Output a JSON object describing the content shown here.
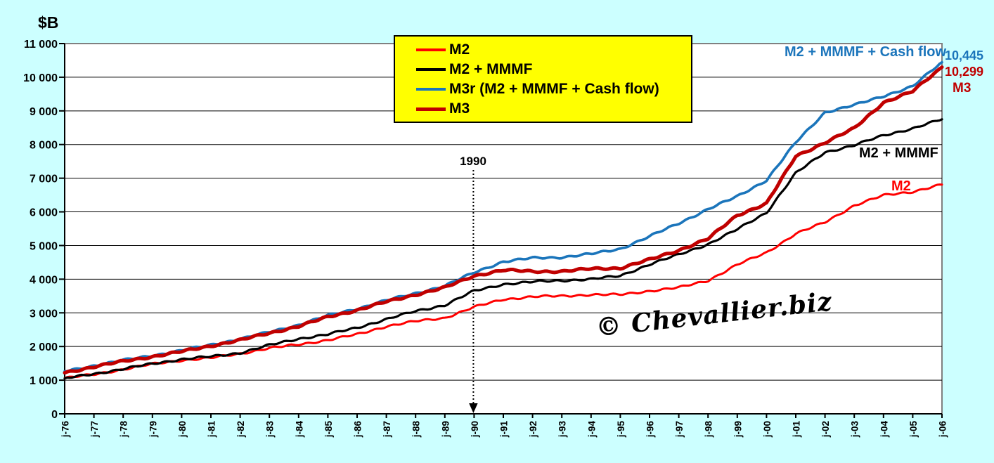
{
  "colors": {
    "background": "#CCFFFF",
    "plot_background": "#FFFFFF",
    "legend_background": "#FFFF00",
    "m2": "#FF0000",
    "m2_mmmf": "#000000",
    "m3r": "#1B75BB",
    "m3": "#C00000"
  },
  "chart_data": {
    "type": "line",
    "title": "",
    "ylabel": "$B",
    "xlabel": "",
    "ylim": [
      0,
      11000
    ],
    "ytick_step": 1000,
    "y_tick_labels": [
      "0",
      "1 000",
      "2 000",
      "3 000",
      "4 000",
      "5 000",
      "6 000",
      "7 000",
      "8 000",
      "9 000",
      "10 000",
      "11 000"
    ],
    "grid": true,
    "legend_position": "top-center",
    "x_labels": [
      "j-76",
      "j-77",
      "j-78",
      "j-79",
      "j-80",
      "j-81",
      "j-82",
      "j-83",
      "j-84",
      "j-85",
      "j-86",
      "j-87",
      "j-88",
      "j-89",
      "j-90",
      "j-91",
      "j-92",
      "j-93",
      "j-94",
      "j-95",
      "j-96",
      "j-97",
      "j-98",
      "j-99",
      "j-00",
      "j-01",
      "j-02",
      "j-03",
      "j-04",
      "j-05",
      "j-06"
    ],
    "series": [
      {
        "name": "M2",
        "color": "#FF0000",
        "line_width": 3,
        "values": [
          1060,
          1170,
          1320,
          1480,
          1590,
          1660,
          1790,
          1950,
          2060,
          2190,
          2360,
          2600,
          2750,
          2850,
          3170,
          3400,
          3480,
          3500,
          3540,
          3540,
          3650,
          3750,
          3960,
          4430,
          4790,
          5350,
          5690,
          6190,
          6490,
          6600,
          6810
        ]
      },
      {
        "name": "M2 + MMMF",
        "color": "#000000",
        "line_width": 3.2,
        "values": [
          1050,
          1190,
          1330,
          1490,
          1620,
          1700,
          1810,
          2040,
          2230,
          2360,
          2560,
          2810,
          3050,
          3230,
          3650,
          3850,
          3920,
          3960,
          4000,
          4100,
          4440,
          4730,
          5040,
          5480,
          5980,
          7150,
          7770,
          7980,
          8270,
          8480,
          8750
        ]
      },
      {
        "name": "M3r (M2 + MMMF + Cash flow)",
        "color": "#1B75BB",
        "line_width": 3.6,
        "values": [
          1260,
          1430,
          1590,
          1730,
          1880,
          2050,
          2220,
          2430,
          2640,
          2920,
          3120,
          3370,
          3580,
          3800,
          4200,
          4520,
          4630,
          4650,
          4750,
          4900,
          5270,
          5660,
          6080,
          6460,
          6940,
          8060,
          8960,
          9170,
          9440,
          9730,
          10445
        ]
      },
      {
        "name": "M3",
        "color": "#C00000",
        "line_width": 5,
        "values": [
          1220,
          1400,
          1560,
          1700,
          1850,
          2020,
          2190,
          2400,
          2600,
          2880,
          3080,
          3330,
          3540,
          3750,
          4100,
          4270,
          4230,
          4230,
          4310,
          4330,
          4580,
          4860,
          5200,
          5900,
          6250,
          7650,
          8060,
          8480,
          9250,
          9580,
          10299
        ]
      }
    ],
    "annotations": {
      "year_marker": "1990",
      "blue_line_end_label": "M2 + MMMF + Cash flow",
      "blue_end_value": "10,445",
      "m3_end_value": "10,299",
      "m3_label": "M3",
      "m2_mmmf_label": "M2 + MMMF",
      "m2_label": "M2",
      "watermark": "© Chevallier.biz"
    }
  }
}
